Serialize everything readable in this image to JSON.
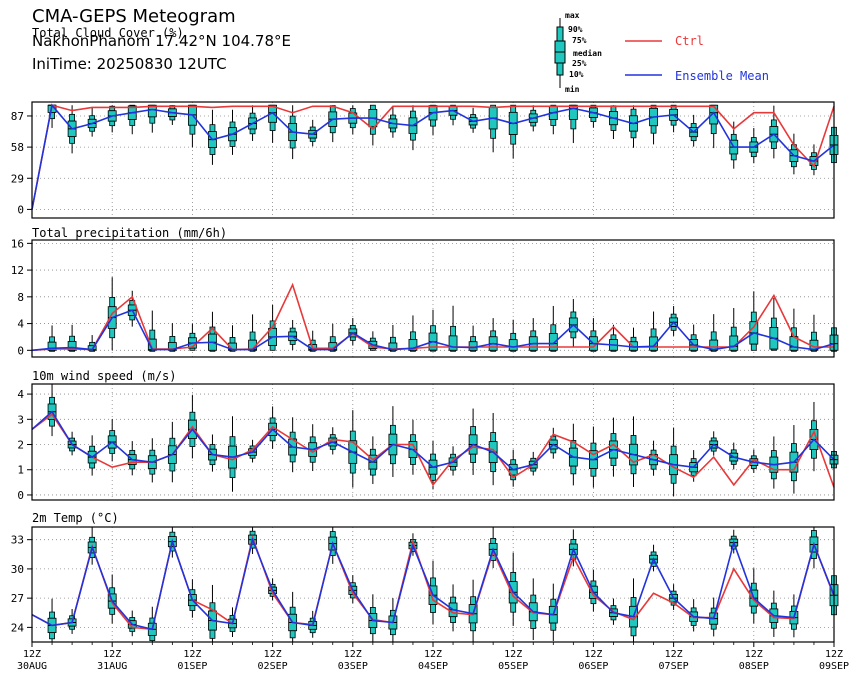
{
  "header": {
    "title": "CMA-GEPS Meteogram",
    "station": "NakhonPhanom 17.42°N 104.78°E",
    "init_time": "IniTime: 20250830 12UTC"
  },
  "legend": {
    "box_labels": [
      "max",
      "90%",
      "75%",
      "median",
      "25%",
      "10%",
      "min"
    ],
    "ctrl_label": "Ctrl",
    "mean_label": "Ensemble Mean",
    "colors": {
      "ctrl": "#e8393a",
      "mean": "#2233dd",
      "box": "#1fc7bf"
    }
  },
  "x_axis": {
    "tick_labels": [
      [
        "12Z",
        "30AUG"
      ],
      [
        "12Z",
        "31AUG"
      ],
      [
        "12Z",
        "01SEP"
      ],
      [
        "12Z",
        "02SEP"
      ],
      [
        "12Z",
        "03SEP"
      ],
      [
        "12Z",
        "04SEP"
      ],
      [
        "12Z",
        "05SEP"
      ],
      [
        "12Z",
        "06SEP"
      ],
      [
        "12Z",
        "07SEP"
      ],
      [
        "12Z",
        "08SEP"
      ],
      [
        "12Z",
        "09SEP"
      ]
    ]
  },
  "chart_data": [
    {
      "type": "box",
      "title": "Total Cloud Cover (%)",
      "ylim": [
        -8,
        100
      ],
      "yticks": [
        0,
        29,
        58,
        87
      ],
      "x_hours_from_init": [
        0,
        6,
        12,
        18,
        24,
        30,
        36,
        42,
        48,
        54,
        60,
        66,
        72,
        78,
        84,
        90,
        96,
        102,
        108,
        114,
        120,
        126,
        132,
        138,
        144,
        150,
        156,
        162,
        168,
        174,
        180,
        186,
        192,
        198,
        204,
        210,
        216,
        222,
        228,
        234,
        240
      ],
      "ctrl": [
        0,
        97,
        92,
        95,
        95,
        95,
        96,
        96,
        96,
        95,
        96,
        96,
        96,
        90,
        96,
        96,
        90,
        75,
        96,
        96,
        96,
        96,
        96,
        95,
        96,
        96,
        96,
        96,
        96,
        96,
        96,
        96,
        96,
        96,
        96,
        75,
        90,
        90,
        60,
        40,
        96
      ],
      "mean": [
        0,
        97,
        75,
        80,
        87,
        90,
        93,
        90,
        88,
        65,
        70,
        80,
        90,
        72,
        70,
        84,
        85,
        85,
        80,
        78,
        90,
        92,
        82,
        85,
        80,
        85,
        90,
        94,
        90,
        85,
        80,
        86,
        88,
        72,
        90,
        58,
        58,
        70,
        50,
        45,
        60
      ],
      "boxes_count": 40
    },
    {
      "type": "box",
      "title": "Total precipitation (mm/6h)",
      "ylim": [
        -1,
        16.5
      ],
      "yticks": [
        0,
        4,
        8,
        12,
        16
      ],
      "ctrl": [
        0,
        0.2,
        0.2,
        0.1,
        5.5,
        8.0,
        0.2,
        0.2,
        0.5,
        3.3,
        0.1,
        0.2,
        3.5,
        9.8,
        0.3,
        0.3,
        2.5,
        0.5,
        0.2,
        0.3,
        0.5,
        0.5,
        0.5,
        0.5,
        0.5,
        0.5,
        0.5,
        0.5,
        0.5,
        3.5,
        0.5,
        0.5,
        0.5,
        0.5,
        0.5,
        0.5,
        3.5,
        8.2,
        2.0,
        0.5,
        0.5
      ],
      "mean": [
        0,
        0.3,
        0.4,
        0.1,
        4.9,
        6.0,
        0.1,
        0.1,
        1.1,
        1.2,
        0.1,
        0.1,
        2.0,
        2.1,
        0.1,
        0.1,
        2.6,
        0.8,
        0.1,
        0.3,
        1.3,
        0.5,
        0.4,
        1.0,
        0.5,
        1.0,
        1.0,
        3.8,
        1.0,
        0.8,
        0.5,
        0.6,
        4.2,
        0.8,
        0.1,
        0.6,
        2.6,
        1.8,
        0.5,
        0.1,
        1.0
      ]
    },
    {
      "type": "box",
      "title": "10m wind speed (m/s)",
      "ylim": [
        -0.2,
        4.4
      ],
      "yticks": [
        0,
        1,
        2,
        3,
        4
      ],
      "ctrl": [
        2.6,
        3.2,
        2.0,
        1.5,
        1.1,
        1.3,
        1.3,
        1.6,
        2.7,
        1.6,
        1.4,
        1.8,
        2.7,
        2.2,
        1.7,
        2.2,
        2.1,
        1.4,
        2.0,
        2.0,
        0.4,
        1.4,
        1.9,
        1.8,
        0.7,
        1.2,
        2.4,
        2.1,
        1.6,
        2.0,
        1.3,
        1.6,
        1.1,
        0.7,
        1.5,
        0.4,
        1.4,
        1.0,
        1.0,
        2.5,
        0.3
      ],
      "mean": [
        2.6,
        3.3,
        2.0,
        1.5,
        2.1,
        1.4,
        1.3,
        1.6,
        2.6,
        1.6,
        1.5,
        1.7,
        2.6,
        1.9,
        1.8,
        2.1,
        1.7,
        1.3,
        2.0,
        1.8,
        1.1,
        1.3,
        2.0,
        1.7,
        1.0,
        1.2,
        2.0,
        1.5,
        1.4,
        1.8,
        1.6,
        1.4,
        1.2,
        1.1,
        2.0,
        1.5,
        1.3,
        1.2,
        1.3,
        2.2,
        1.4
      ]
    },
    {
      "type": "box",
      "title": "2m Temp (°C)",
      "ylim": [
        22.5,
        34.3
      ],
      "yticks": [
        24,
        27,
        30,
        33
      ],
      "ctrl": [
        25.3,
        24.2,
        24.5,
        32.3,
        26.5,
        24.0,
        23.8,
        32.8,
        26.8,
        25.8,
        24.4,
        33.2,
        27.5,
        24.5,
        24.3,
        32.6,
        27.5,
        24.8,
        24.5,
        32.8,
        26.8,
        25.5,
        25.3,
        31.8,
        27.2,
        25.5,
        25.3,
        31.2,
        27.3,
        25.6,
        24.8,
        27.5,
        26.5,
        25.0,
        25.0,
        30.0,
        26.8,
        25.0,
        24.9,
        32.5,
        27.2
      ],
      "mean": [
        25.3,
        24.2,
        24.5,
        32.2,
        26.7,
        24.3,
        23.8,
        32.8,
        26.8,
        24.7,
        24.4,
        33.0,
        27.8,
        24.5,
        24.2,
        32.6,
        27.8,
        24.7,
        24.5,
        32.4,
        27.3,
        25.8,
        25.4,
        32.0,
        27.6,
        25.6,
        25.3,
        32.0,
        27.6,
        25.5,
        25.1,
        31.0,
        27.0,
        25.1,
        24.9,
        32.7,
        27.0,
        25.2,
        25.0,
        32.5,
        27.3
      ]
    }
  ]
}
